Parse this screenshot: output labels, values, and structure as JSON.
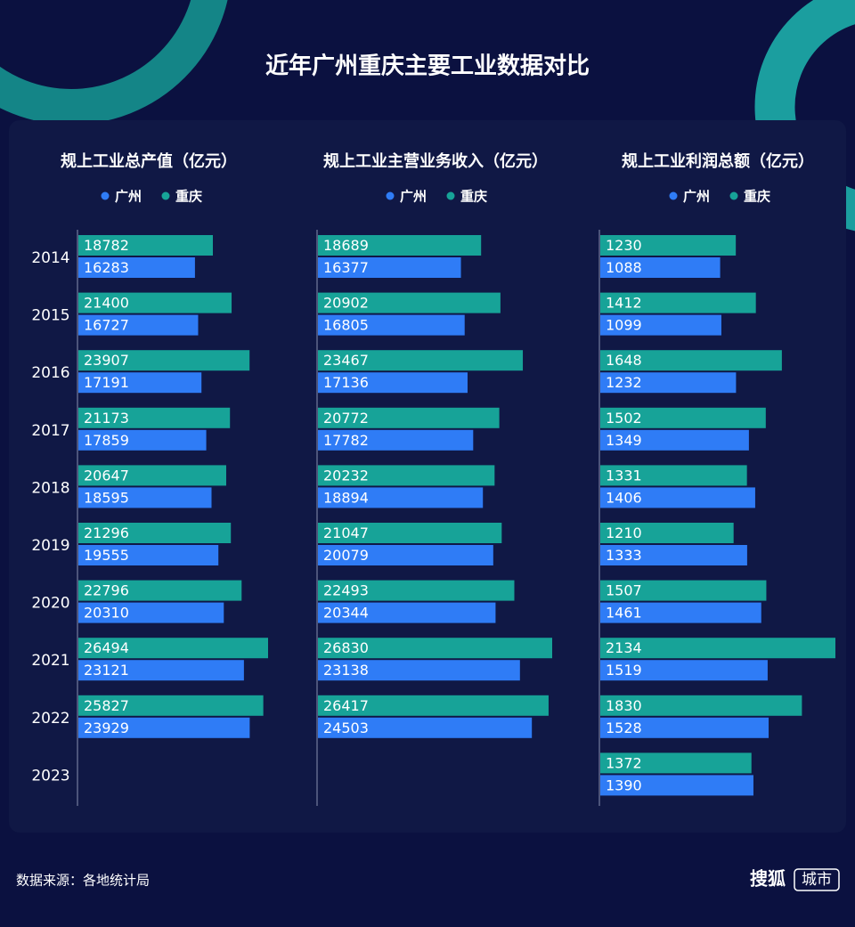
{
  "title": "近年广州重庆主要工业数据对比",
  "source": "数据来源：各地统计局",
  "brand": {
    "name": "搜狐",
    "tag": "城市"
  },
  "chart_data": [
    {
      "type": "bar",
      "orientation": "horizontal",
      "title": "规上工业总产值（亿元）",
      "categories": [
        "2014",
        "2015",
        "2016",
        "2017",
        "2018",
        "2019",
        "2020",
        "2021",
        "2022",
        "2023"
      ],
      "series": [
        {
          "name": "广州",
          "color": "#2f7cf6",
          "values": [
            16283,
            16727,
            17191,
            17859,
            18595,
            19555,
            20310,
            23121,
            23929,
            null
          ]
        },
        {
          "name": "重庆",
          "color": "#17a398",
          "values": [
            18782,
            21400,
            23907,
            21173,
            20647,
            21296,
            22796,
            26494,
            25827,
            null
          ]
        }
      ]
    },
    {
      "type": "bar",
      "orientation": "horizontal",
      "title": "规上工业主营业务收入（亿元）",
      "series": [
        {
          "name": "广州",
          "color": "#2f7cf6",
          "values": [
            16377,
            16805,
            17136,
            17782,
            18894,
            20079,
            20344,
            23138,
            24503,
            null
          ]
        },
        {
          "name": "重庆",
          "color": "#17a398",
          "values": [
            18689,
            20902,
            23467,
            20772,
            20232,
            21047,
            22493,
            26830,
            26417,
            null
          ]
        }
      ]
    },
    {
      "type": "bar",
      "orientation": "horizontal",
      "title": "规上工业利润总额（亿元）",
      "series": [
        {
          "name": "广州",
          "color": "#2f7cf6",
          "values": [
            1088,
            1099,
            1232,
            1349,
            1406,
            1333,
            1461,
            1519,
            1528,
            1390
          ]
        },
        {
          "name": "重庆",
          "color": "#17a398",
          "values": [
            1230,
            1412,
            1648,
            1502,
            1331,
            1210,
            1507,
            2134,
            1830,
            1372
          ]
        }
      ]
    }
  ]
}
